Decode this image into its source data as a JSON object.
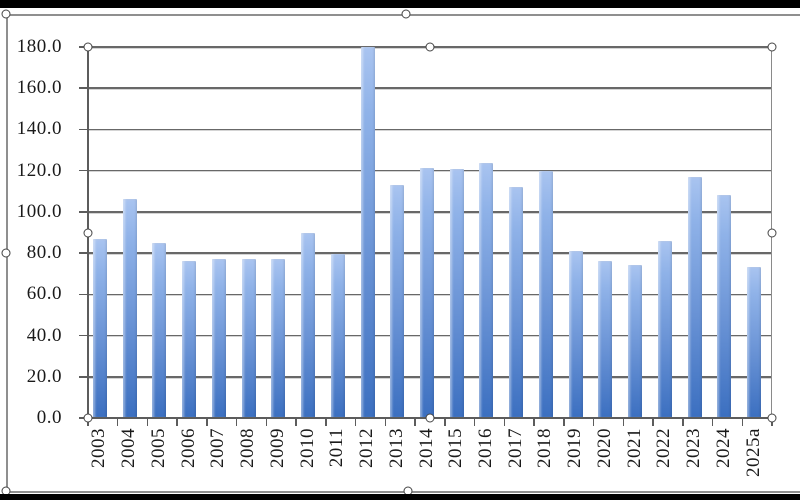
{
  "chart_data": {
    "type": "bar",
    "title": "",
    "xlabel": "",
    "ylabel": "",
    "categories": [
      "2003",
      "2004",
      "2005",
      "2006",
      "2007",
      "2008",
      "2009",
      "2010",
      "2011",
      "2012",
      "2013",
      "2014",
      "2015",
      "2016",
      "2017",
      "2018",
      "2019",
      "2020",
      "2021",
      "2022",
      "2023",
      "2024",
      "2025a"
    ],
    "values": [
      87,
      106.5,
      85,
      76,
      77,
      77,
      77,
      90,
      79.5,
      180,
      113,
      121.5,
      121,
      123.5,
      112,
      120,
      81,
      76,
      74,
      86,
      117,
      108,
      73.5
    ],
    "ylim": [
      0,
      180
    ],
    "ytick_step": 20,
    "ytick_labels": [
      "0.0",
      "20.0",
      "40.0",
      "60.0",
      "80.0",
      "100.0",
      "120.0",
      "140.0",
      "160.0",
      "180.0"
    ],
    "grid": true,
    "legend": false,
    "series_name": ""
  },
  "colors": {
    "bar_top": "#a9c4f0",
    "bar_bottom": "#3b6fc0",
    "gridline": "#686868",
    "axis": "#5c5c5c",
    "frame": "#8f8f8f",
    "handle_fill": "#ffffff",
    "handle_border": "#454545",
    "letterbox": "#000000",
    "text": "#1a1a1a",
    "background": "#ffffff"
  },
  "selection": {
    "chart_frame_handles": [
      "top-left",
      "top-center",
      "left-middle",
      "bottom-left",
      "bottom-center"
    ],
    "plot_area_handles": [
      "top-left",
      "top-center",
      "top-right",
      "left-middle",
      "right-middle",
      "bottom-left",
      "bottom-center",
      "bottom-right"
    ]
  }
}
